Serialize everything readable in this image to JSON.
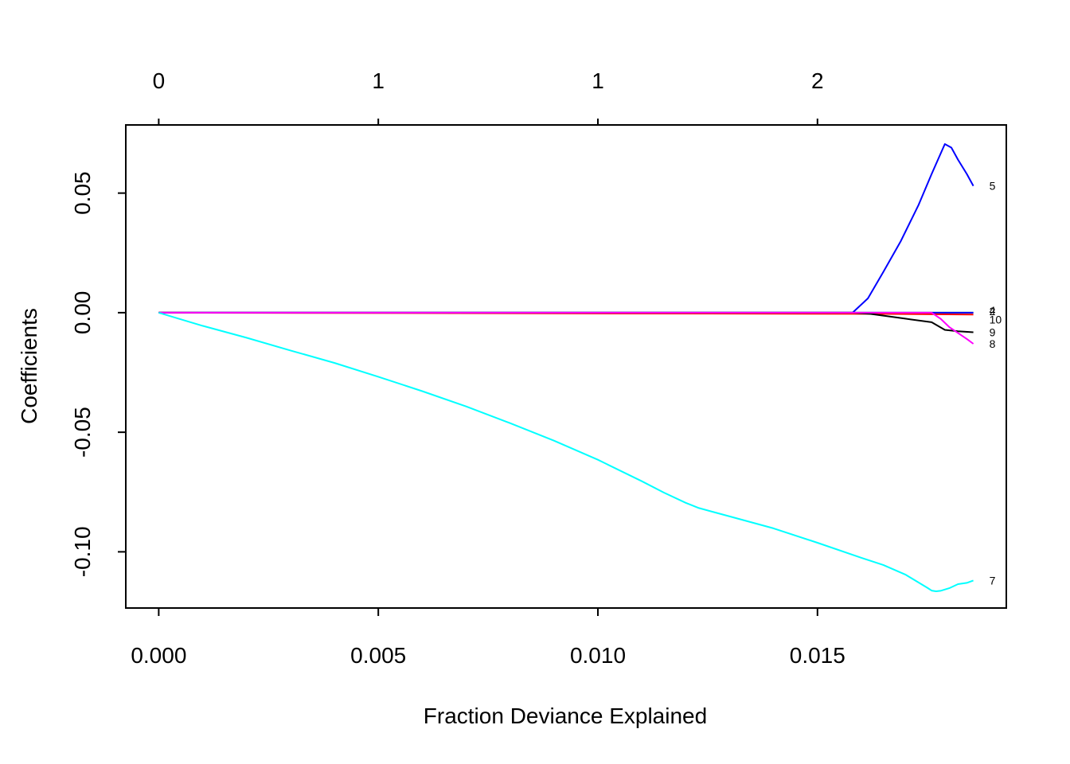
{
  "chart_data": {
    "type": "line",
    "title": "",
    "xlabel": "Fraction Deviance Explained",
    "ylabel": "Coefficients",
    "xlim": [
      -0.00075,
      0.0193
    ],
    "ylim": [
      -0.1235,
      0.0785
    ],
    "x_ticks": [
      "0.000",
      "0.005",
      "0.010",
      "0.015"
    ],
    "x_tick_values": [
      0.0,
      0.005,
      0.01,
      0.015
    ],
    "y_ticks": [
      "0.05",
      "0.00",
      "-0.05",
      "-0.10"
    ],
    "y_tick_values": [
      0.05,
      0.0,
      -0.05,
      -0.1
    ],
    "top_axis": {
      "labels": [
        "0",
        "1",
        "1",
        "2"
      ],
      "positions": [
        0.0,
        0.005,
        0.01,
        0.015
      ]
    },
    "grid": false,
    "legend": "none",
    "series": [
      {
        "name": "5",
        "color": "#0000ff",
        "x": [
          0.0,
          0.0158,
          0.01615,
          0.0165,
          0.0169,
          0.0173,
          0.0176,
          0.0179,
          0.01805,
          0.0182,
          0.0184,
          0.01855
        ],
        "y": [
          0.0,
          0.0,
          0.006,
          0.017,
          0.03,
          0.045,
          0.058,
          0.0705,
          0.069,
          0.064,
          0.058,
          0.053
        ]
      },
      {
        "name": "2",
        "color": "#00cd00",
        "x": [
          0.0,
          0.01855
        ],
        "y": [
          0.0,
          0.0
        ]
      },
      {
        "name": "4",
        "color": "#0000ff",
        "x": [
          0.0,
          0.01855
        ],
        "y": [
          0.0,
          0.0
        ]
      },
      {
        "name": "10",
        "color": "#ff0000",
        "x": [
          0.0,
          0.0165,
          0.01855
        ],
        "y": [
          0.0,
          -0.0005,
          -0.0008
        ]
      },
      {
        "name": "9",
        "color": "#000000",
        "x": [
          0.0,
          0.0158,
          0.0162,
          0.0166,
          0.017,
          0.0176,
          0.0179,
          0.0182,
          0.01855
        ],
        "y": [
          0.0,
          0.0,
          -0.0005,
          -0.0015,
          -0.0025,
          -0.004,
          -0.0072,
          -0.0078,
          -0.0082
        ]
      },
      {
        "name": "8",
        "color": "#ff00ff",
        "x": [
          0.0,
          0.0176,
          0.0178,
          0.018,
          0.0182,
          0.0184,
          0.01855
        ],
        "y": [
          0.0,
          0.0,
          -0.0025,
          -0.006,
          -0.0085,
          -0.011,
          -0.013
        ]
      },
      {
        "name": "7",
        "color": "#00ffff",
        "x": [
          0.0,
          0.001,
          0.002,
          0.003,
          0.004,
          0.005,
          0.006,
          0.007,
          0.008,
          0.009,
          0.01,
          0.011,
          0.0115,
          0.012,
          0.0123,
          0.013,
          0.014,
          0.015,
          0.016,
          0.0165,
          0.017,
          0.0175,
          0.0176,
          0.0177,
          0.0178,
          0.018,
          0.0182,
          0.0184,
          0.01855
        ],
        "y": [
          0.0,
          -0.0055,
          -0.0105,
          -0.0158,
          -0.021,
          -0.0268,
          -0.0328,
          -0.0392,
          -0.0462,
          -0.0535,
          -0.0615,
          -0.0705,
          -0.0752,
          -0.0795,
          -0.0817,
          -0.0852,
          -0.0902,
          -0.0962,
          -0.1025,
          -0.1055,
          -0.1095,
          -0.115,
          -0.1162,
          -0.1165,
          -0.1163,
          -0.1152,
          -0.1135,
          -0.113,
          -0.112
        ]
      }
    ]
  }
}
